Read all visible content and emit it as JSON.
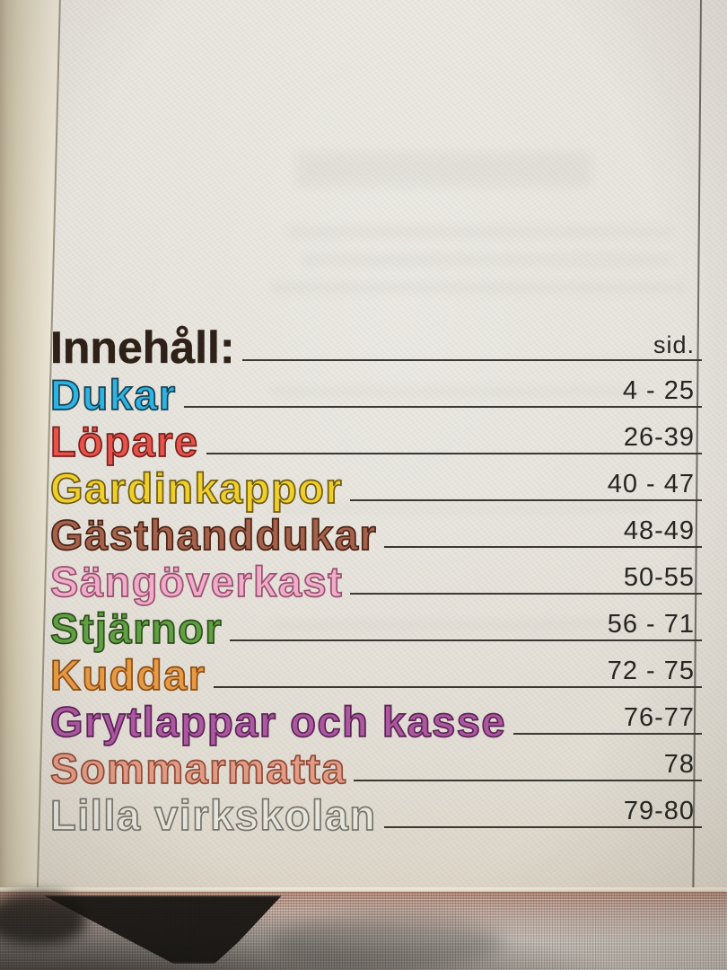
{
  "document": {
    "kind": "book-table-of-contents-photo",
    "header": {
      "title": "Innehåll:",
      "pages_column_label": "sid."
    },
    "entries": [
      {
        "label": "Dukar",
        "pages": "4 - 25",
        "fill": "#2fb3e3",
        "stroke": "#174050"
      },
      {
        "label": "Löpare",
        "pages": "26-39",
        "fill": "#e5534b",
        "stroke": "#79201c"
      },
      {
        "label": "Gardinkappor",
        "pages": "40 - 47",
        "fill": "#f0cf2b",
        "stroke": "#6e5c12"
      },
      {
        "label": "Gästhanddukar",
        "pages": "48-49",
        "fill": "#a6614a",
        "stroke": "#4924166"
      },
      {
        "label": "Sängöverkast",
        "pages": "50-55",
        "fill": "#eeadc8",
        "stroke": "#9b4f6e"
      },
      {
        "label": "Stjärnor",
        "pages": "56 - 71",
        "fill": "#61a044",
        "stroke": "#2c4f1a"
      },
      {
        "label": "Kuddar",
        "pages": "72 - 75",
        "fill": "#e79a45",
        "stroke": "#8a4d14"
      },
      {
        "label": "Grytlappar och kasse",
        "pages": "76-77",
        "fill": "#ab58a0",
        "stroke": "#5c2356"
      },
      {
        "label": "Sommarmatta",
        "pages": "78",
        "fill": "#e29b84",
        "stroke": "#8f4a38"
      },
      {
        "label": "Lilla virkskolan",
        "pages": "79-80",
        "fill": "#e7e4dc",
        "stroke": "#77746c"
      }
    ],
    "colors": {
      "paper": "#e6e3dc",
      "header_text": "#2e2118",
      "rule": "#3b3833",
      "page_numbers": "#262522",
      "gutter_edge": "#b4a88d",
      "fabric_base": "#c3bcb4",
      "fabric_tint": "#a97c6b",
      "fabric_shadow": "#141210"
    }
  }
}
